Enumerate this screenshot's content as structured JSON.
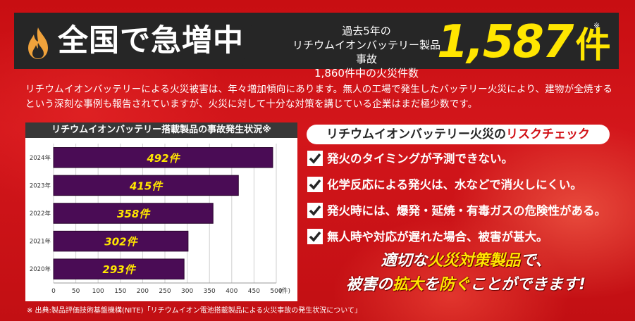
{
  "header": {
    "headline": "全国で急増中",
    "past_line_1": "過去5年の",
    "past_line_2": "リチウムイオンバッテリー製品事故",
    "past_line_3": "1,860件中の火災件数",
    "count_value": "1,587",
    "count_unit": "件",
    "footnote_mark": "※",
    "flame_icon": "flame-icon"
  },
  "description": "リチウムイオンバッテリーによる火災被害は、年々増加傾向にあります。無人の工場で発生したバッテリー火災により、建物が全焼するという深刻な事例も報告されていますが、火災に対して十分な対策を講じている企業はまだ極少数です。",
  "chart_data": {
    "type": "bar",
    "orientation": "horizontal",
    "title": "リチウムイオンバッテリー搭載製品の事故発生状況※",
    "categories": [
      "2024年",
      "2023年",
      "2022年",
      "2021年",
      "2020年"
    ],
    "values": [
      492,
      415,
      358,
      302,
      293
    ],
    "data_labels": [
      "492件",
      "415件",
      "358件",
      "302件",
      "293件"
    ],
    "x_ticks": [
      "0",
      "50",
      "100",
      "150",
      "200",
      "250",
      "300",
      "350",
      "400",
      "450",
      "500"
    ],
    "xlabel": "(件)",
    "xlim": [
      0,
      500
    ],
    "grid": true,
    "bar_color": "#4a0c55",
    "label_color": "#ffe600"
  },
  "risk": {
    "title_a": "リチウムイオンバッテリー火災の",
    "title_b": "リスクチェック",
    "check_icon": "checkbox-checked-icon",
    "items": [
      "発火のタイミングが予測できない。",
      "化学反応による発火は、水などで消火しにくい。",
      "発火時には、爆発・延焼・有毒ガスの危険性がある。",
      "無人時や対応が遅れた場合、被害が甚大。"
    ]
  },
  "slogan": {
    "l1_a": "適切な",
    "l1_b": "火災対策製品",
    "l1_c": "で、",
    "l2_a": "被害の",
    "l2_b": "拡大",
    "l2_c": "を",
    "l2_d": "防ぐ",
    "l2_e": "ことができます!"
  },
  "source": "※ 出典:製品評価技術基盤機構(NITE)「リチウムイオン電池搭載製品による火災事故の発生状況について」",
  "colors": {
    "background_red": "#c80e12",
    "header_dark": "#262626",
    "accent_yellow": "#ffe600",
    "bar_purple": "#4a0c55"
  }
}
